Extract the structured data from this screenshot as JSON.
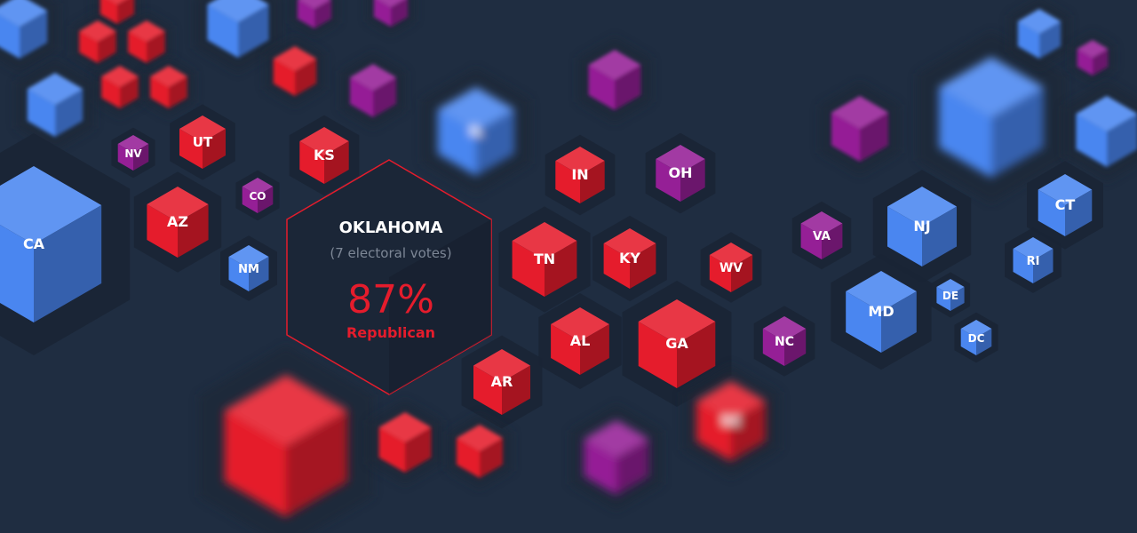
{
  "colors": {
    "background": "#1f2d41",
    "republican": "#e51c2c",
    "democrat": "#4a86f0",
    "swing": "#951f96",
    "highlight": "#e51c2c",
    "hexShadow": "#1a2535"
  },
  "tooltip": {
    "state": "OKLAHOMA",
    "votes": "(7 electoral votes)",
    "percent": "87%",
    "party": "Republican"
  },
  "states": [
    {
      "label": "",
      "party": "democrat",
      "blurred": true
    },
    {
      "label": "",
      "party": "republican",
      "blurred": true
    },
    {
      "label": "",
      "party": "democrat",
      "blurred": true
    },
    {
      "label": "",
      "party": "swing",
      "blurred": true
    },
    {
      "label": "",
      "party": "swing",
      "blurred": true
    },
    {
      "label": "",
      "party": "republican",
      "blurred": true
    },
    {
      "label": "",
      "party": "republican",
      "blurred": true
    },
    {
      "label": "",
      "party": "republican",
      "blurred": true
    },
    {
      "label": "",
      "party": "republican",
      "blurred": true
    },
    {
      "label": "",
      "party": "democrat",
      "blurred": true
    },
    {
      "label": "",
      "party": "republican",
      "blurred": true
    },
    {
      "label": "",
      "party": "swing",
      "blurred": true
    },
    {
      "label": "",
      "party": "swing",
      "blurred": true
    },
    {
      "label": "IL",
      "party": "democrat",
      "blurred": true
    },
    {
      "label": "",
      "party": "swing",
      "blurred": true
    },
    {
      "label": "",
      "party": "democrat",
      "blurred": true
    },
    {
      "label": "",
      "party": "democrat",
      "blurred": true
    },
    {
      "label": "",
      "party": "swing",
      "blurred": true
    },
    {
      "label": "",
      "party": "democrat",
      "blurred": true
    },
    {
      "label": "NV",
      "party": "swing",
      "blurred": false
    },
    {
      "label": "UT",
      "party": "republican",
      "blurred": false
    },
    {
      "label": "KS",
      "party": "republican",
      "blurred": false
    },
    {
      "label": "CA",
      "party": "democrat",
      "blurred": false
    },
    {
      "label": "AZ",
      "party": "republican",
      "blurred": false
    },
    {
      "label": "CO",
      "party": "swing",
      "blurred": false
    },
    {
      "label": "NM",
      "party": "democrat",
      "blurred": false
    },
    {
      "label": "IN",
      "party": "republican",
      "blurred": false
    },
    {
      "label": "OH",
      "party": "swing",
      "blurred": false
    },
    {
      "label": "TN",
      "party": "republican",
      "blurred": false
    },
    {
      "label": "KY",
      "party": "republican",
      "blurred": false
    },
    {
      "label": "WV",
      "party": "republican",
      "blurred": false
    },
    {
      "label": "VA",
      "party": "swing",
      "blurred": false
    },
    {
      "label": "NJ",
      "party": "democrat",
      "blurred": false
    },
    {
      "label": "CT",
      "party": "democrat",
      "blurred": false
    },
    {
      "label": "RI",
      "party": "democrat",
      "blurred": false
    },
    {
      "label": "AL",
      "party": "republican",
      "blurred": false
    },
    {
      "label": "GA",
      "party": "republican",
      "blurred": false
    },
    {
      "label": "NC",
      "party": "swing",
      "blurred": false
    },
    {
      "label": "MD",
      "party": "democrat",
      "blurred": false
    },
    {
      "label": "DE",
      "party": "democrat",
      "blurred": false
    },
    {
      "label": "DC",
      "party": "democrat",
      "blurred": false
    },
    {
      "label": "AR",
      "party": "republican",
      "blurred": false
    },
    {
      "label": "",
      "party": "republican",
      "blurred": true
    },
    {
      "label": "",
      "party": "republican",
      "blurred": true
    },
    {
      "label": "",
      "party": "republican",
      "blurred": true
    },
    {
      "label": "",
      "party": "swing",
      "blurred": true
    },
    {
      "label": "SC",
      "party": "republican",
      "blurred": true
    }
  ]
}
